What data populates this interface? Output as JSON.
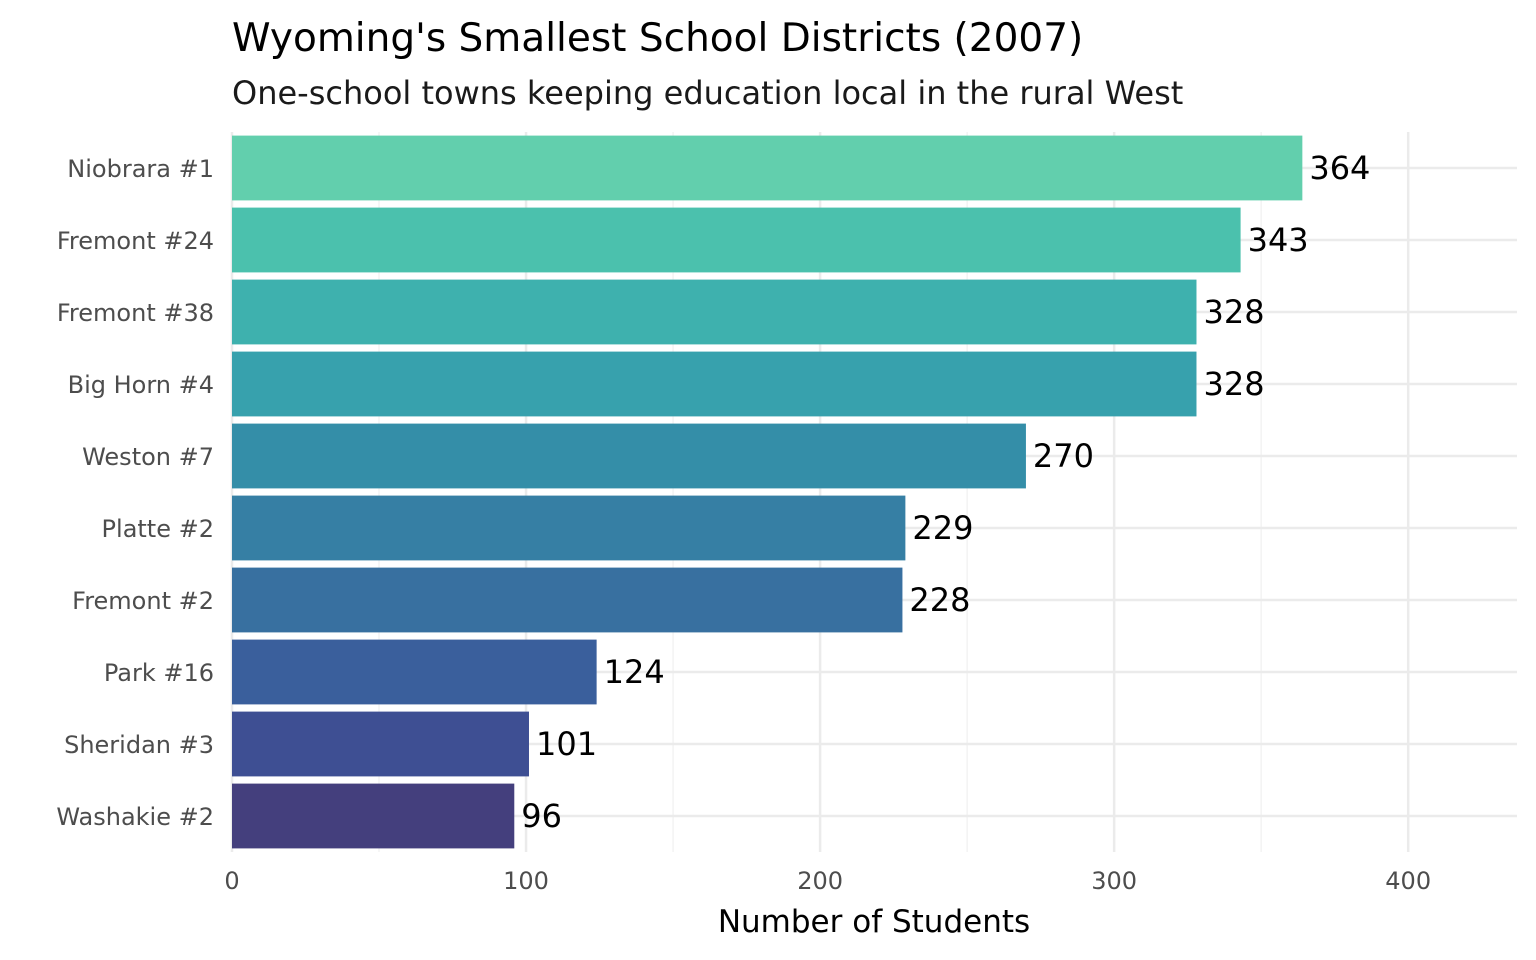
{
  "chart_data": {
    "type": "bar",
    "orientation": "horizontal",
    "title": "Wyoming's Smallest School Districts (2007)",
    "subtitle": "One-school towns keeping education local in the rural West",
    "xlabel": "Number of Students",
    "ylabel": "",
    "xlim": [
      0,
      437
    ],
    "xticks": [
      0,
      100,
      200,
      300,
      400
    ],
    "grid": true,
    "legend": "none",
    "categories": [
      "Niobrara #1",
      "Fremont #24",
      "Fremont #38",
      "Big Horn #4",
      "Weston #7",
      "Platte #2",
      "Fremont #2",
      "Park #16",
      "Sheridan #3",
      "Washakie #2"
    ],
    "values": [
      364,
      343,
      328,
      328,
      270,
      229,
      228,
      124,
      101,
      96
    ],
    "colors": [
      "#62cfad",
      "#4bc1ad",
      "#3eb1ae",
      "#37a1ad",
      "#348ea8",
      "#367fa4",
      "#3870a0",
      "#3a5f9c",
      "#3e4f93",
      "#443f7d"
    ]
  }
}
